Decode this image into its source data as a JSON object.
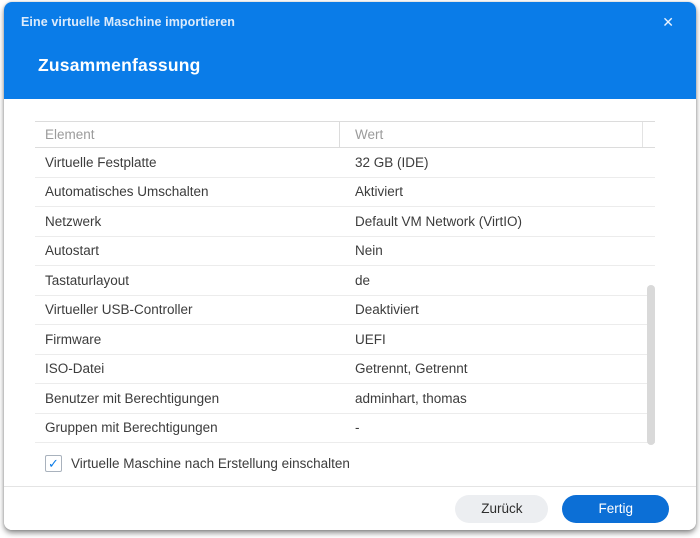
{
  "dialog": {
    "title": "Eine virtuelle Maschine importieren",
    "subtitle": "Zusammenfassung"
  },
  "icons": {
    "close": "✕",
    "check": "✓"
  },
  "table": {
    "columns": {
      "element": "Element",
      "wert": "Wert"
    },
    "rows": [
      {
        "element": "Virtuelle Festplatte",
        "wert": "32 GB (IDE)"
      },
      {
        "element": "Automatisches Umschalten",
        "wert": "Aktiviert"
      },
      {
        "element": "Netzwerk",
        "wert": "Default VM Network (VirtIO)"
      },
      {
        "element": "Autostart",
        "wert": "Nein"
      },
      {
        "element": "Tastaturlayout",
        "wert": "de"
      },
      {
        "element": "Virtueller USB-Controller",
        "wert": "Deaktiviert"
      },
      {
        "element": "Firmware",
        "wert": "UEFI"
      },
      {
        "element": "ISO-Datei",
        "wert": "Getrennt, Getrennt"
      },
      {
        "element": "Benutzer mit Berechtigungen",
        "wert": "adminhart, thomas"
      },
      {
        "element": "Gruppen mit Berechtigungen",
        "wert": "-"
      }
    ]
  },
  "checkbox": {
    "label": "Virtuelle Maschine nach Erstellung einschalten",
    "checked": true
  },
  "buttons": {
    "back": "Zurück",
    "finish": "Fertig"
  },
  "colors": {
    "header_blue": "#0a7ce8",
    "primary_button_blue": "#0c6fd6",
    "checkbox_check_blue": "#0a7ce8",
    "table_header_text": "#9b9b9b",
    "body_text": "#3c3c3c"
  }
}
